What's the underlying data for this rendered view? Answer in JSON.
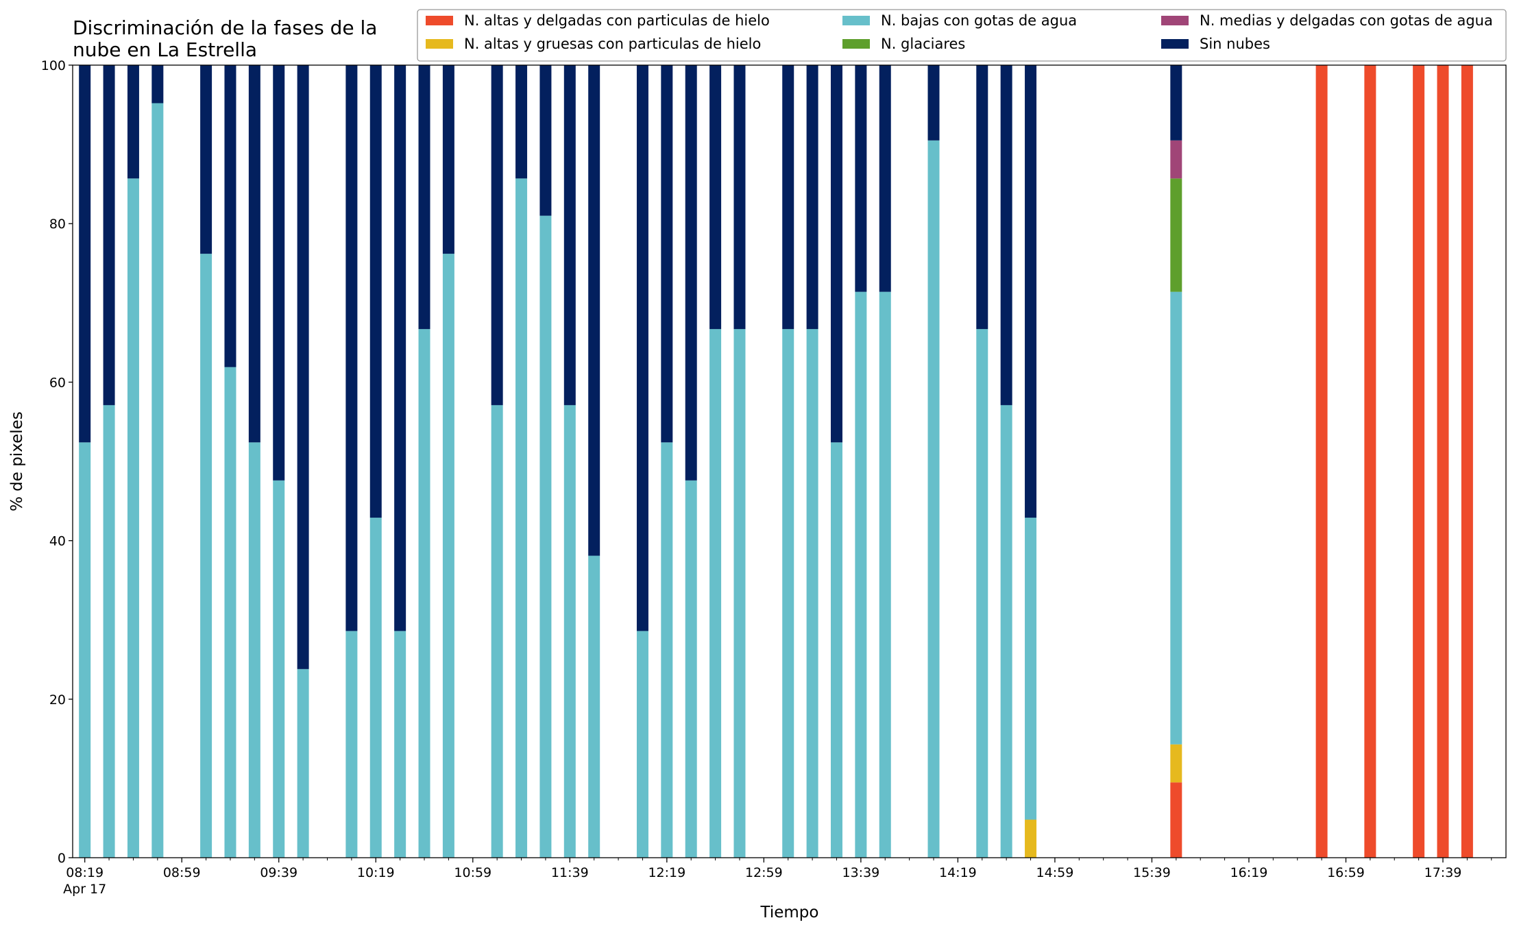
{
  "chart_data": {
    "type": "stacked_bar",
    "title": "Discriminación de la fases de la\nnube en La Estrella",
    "xlabel": "Tiempo",
    "ylabel": "% de pixeles",
    "date_label": "Apr 17",
    "x": [
      "08:19",
      "08:29",
      "08:39",
      "08:49",
      "09:09",
      "09:19",
      "09:29",
      "09:39",
      "09:49",
      "10:09",
      "10:19",
      "10:29",
      "10:39",
      "10:49",
      "11:09",
      "11:19",
      "11:29",
      "11:39",
      "11:49",
      "12:09",
      "12:19",
      "12:29",
      "12:39",
      "12:49",
      "13:09",
      "13:19",
      "13:29",
      "13:39",
      "13:49",
      "14:09",
      "14:29",
      "14:39",
      "14:49",
      "15:49",
      "16:49",
      "17:09",
      "17:29",
      "17:39",
      "17:49"
    ],
    "series": [
      {
        "name": "N. altas y delgadas con particulas de hielo",
        "color": "#ee4b2b",
        "values": [
          0,
          0,
          0,
          0,
          0,
          0,
          0,
          0,
          0,
          0,
          0,
          0,
          0,
          0,
          0,
          0,
          0,
          0,
          0,
          0,
          0,
          0,
          0,
          0,
          0,
          0,
          0,
          0,
          0,
          0,
          0,
          0,
          0,
          9.5,
          100,
          100,
          100,
          100,
          100
        ]
      },
      {
        "name": "N. altas y gruesas con particulas de hielo",
        "color": "#e6b91e",
        "values": [
          0,
          0,
          0,
          0,
          0,
          0,
          0,
          0,
          0,
          0,
          0,
          0,
          0,
          0,
          0,
          0,
          0,
          0,
          0,
          0,
          0,
          0,
          0,
          0,
          0,
          0,
          0,
          0,
          0,
          0,
          0,
          0,
          4.8,
          4.8,
          0,
          0,
          0,
          0,
          0
        ]
      },
      {
        "name": "N. bajas con gotas de agua",
        "color": "#67bfca",
        "values": [
          52.4,
          57.1,
          85.7,
          95.2,
          76.2,
          61.9,
          52.4,
          47.6,
          23.8,
          28.6,
          42.9,
          28.6,
          66.7,
          76.2,
          57.1,
          85.7,
          81.0,
          57.1,
          38.1,
          28.6,
          52.4,
          47.6,
          66.7,
          66.7,
          66.7,
          66.7,
          52.4,
          71.4,
          71.4,
          90.5,
          66.7,
          57.1,
          38.1,
          57.1,
          0,
          0,
          0,
          0,
          0
        ]
      },
      {
        "name": "N. glaciares",
        "color": "#5e9f2c",
        "values": [
          0,
          0,
          0,
          0,
          0,
          0,
          0,
          0,
          0,
          0,
          0,
          0,
          0,
          0,
          0,
          0,
          0,
          0,
          0,
          0,
          0,
          0,
          0,
          0,
          0,
          0,
          0,
          0,
          0,
          0,
          0,
          0,
          0,
          14.3,
          0,
          0,
          0,
          0,
          0
        ]
      },
      {
        "name": "N. medias y delgadas con gotas de agua",
        "color": "#a04577",
        "values": [
          0,
          0,
          0,
          0,
          0,
          0,
          0,
          0,
          0,
          0,
          0,
          0,
          0,
          0,
          0,
          0,
          0,
          0,
          0,
          0,
          0,
          0,
          0,
          0,
          0,
          0,
          0,
          0,
          0,
          0,
          0,
          0,
          0,
          4.8,
          0,
          0,
          0,
          0,
          0
        ]
      },
      {
        "name": "Sin nubes",
        "color": "#03205e",
        "values": [
          47.6,
          42.9,
          14.3,
          4.8,
          23.8,
          38.1,
          47.6,
          52.4,
          76.2,
          71.4,
          57.1,
          71.4,
          33.3,
          23.8,
          42.9,
          14.3,
          19.0,
          42.9,
          61.9,
          71.4,
          47.6,
          52.4,
          33.3,
          33.3,
          33.3,
          33.3,
          47.6,
          28.6,
          28.6,
          9.5,
          33.3,
          42.9,
          57.1,
          9.5,
          0,
          0,
          0,
          0,
          0
        ]
      }
    ],
    "xlim": [
      "08:14",
      "18:05"
    ],
    "xticks": [
      "08:19",
      "08:59",
      "09:39",
      "10:19",
      "10:59",
      "11:39",
      "12:19",
      "12:59",
      "13:39",
      "14:19",
      "14:59",
      "15:39",
      "16:19",
      "16:59",
      "17:39"
    ],
    "xminorticks": [
      "08:29",
      "08:39",
      "08:49",
      "09:09",
      "09:19",
      "09:29",
      "09:49",
      "09:59",
      "10:09",
      "10:29",
      "10:39",
      "10:49",
      "11:09",
      "11:19",
      "11:29",
      "11:49",
      "11:59",
      "12:09",
      "12:29",
      "12:39",
      "12:49",
      "13:09",
      "13:19",
      "13:29",
      "13:49",
      "13:59",
      "14:09",
      "14:29",
      "14:39",
      "14:49",
      "15:09",
      "15:19",
      "15:29",
      "15:49",
      "15:59",
      "16:09",
      "16:29",
      "16:39",
      "16:49",
      "17:09",
      "17:19",
      "17:29",
      "17:49",
      "17:59"
    ],
    "ylim": [
      0,
      100
    ],
    "yticks": [
      0,
      20,
      40,
      60,
      80,
      100
    ],
    "legend": "top-right"
  }
}
